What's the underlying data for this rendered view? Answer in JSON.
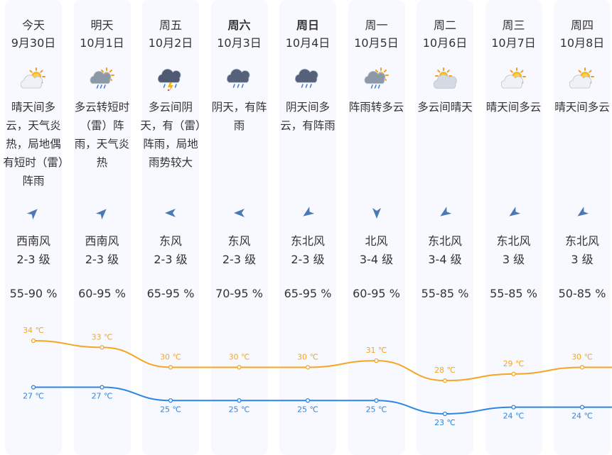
{
  "days": [
    {
      "day": "今天",
      "date": "9月30日",
      "bold": false,
      "icon": "sun-cloud-icon",
      "desc": "晴天间多云，天气炎热，局地偶有短时（雷）阵雨",
      "wind_dir": "西南风",
      "wind_level": "2-3 级",
      "humidity": "55-90 %",
      "wind_arrow": "southwest-arrow-icon",
      "high": 34,
      "low": 27,
      "high_label": "34 ℃",
      "low_label": "27 ℃"
    },
    {
      "day": "明天",
      "date": "10月1日",
      "bold": false,
      "icon": "cloud-rain-sun-icon",
      "desc": "多云转短时（雷）阵雨，天气炎热",
      "wind_dir": "西南风",
      "wind_level": "2-3 级",
      "humidity": "60-95 %",
      "wind_arrow": "southwest-arrow-icon",
      "high": 33,
      "low": 27,
      "high_label": "33 ℃",
      "low_label": "27 ℃"
    },
    {
      "day": "周五",
      "date": "10月2日",
      "bold": false,
      "icon": "thunderstorm-icon",
      "desc": "多云间阴天，有（雷）阵雨，局地雨势较大",
      "wind_dir": "东风",
      "wind_level": "2-3 级",
      "humidity": "65-95 %",
      "wind_arrow": "east-arrow-icon",
      "high": 30,
      "low": 25,
      "high_label": "30 ℃",
      "low_label": "25 ℃"
    },
    {
      "day": "周六",
      "date": "10月3日",
      "bold": true,
      "icon": "rain-cloud-icon",
      "desc": "阴天，有阵雨",
      "wind_dir": "东风",
      "wind_level": "2-3 级",
      "humidity": "70-95 %",
      "wind_arrow": "east-arrow-icon",
      "high": 30,
      "low": 25,
      "high_label": "30 ℃",
      "low_label": "25 ℃"
    },
    {
      "day": "周日",
      "date": "10月4日",
      "bold": true,
      "icon": "rain-cloud-icon",
      "desc": "阴天间多云，有阵雨",
      "wind_dir": "东北风",
      "wind_level": "2-3 级",
      "humidity": "65-95 %",
      "wind_arrow": "northeast-arrow-icon",
      "high": 30,
      "low": 25,
      "high_label": "30 ℃",
      "low_label": "25 ℃"
    },
    {
      "day": "周一",
      "date": "10月5日",
      "bold": false,
      "icon": "cloud-rain-sun-icon",
      "desc": "阵雨转多云",
      "wind_dir": "北风",
      "wind_level": "3-4 级",
      "humidity": "60-95 %",
      "wind_arrow": "north-arrow-icon",
      "high": 31,
      "low": 25,
      "high_label": "31 ℃",
      "low_label": "25 ℃"
    },
    {
      "day": "周二",
      "date": "10月6日",
      "bold": false,
      "icon": "sun-behind-cloud-icon",
      "desc": "多云间晴天",
      "wind_dir": "东北风",
      "wind_level": "3-4 级",
      "humidity": "55-85 %",
      "wind_arrow": "northeast-arrow-icon",
      "high": 28,
      "low": 23,
      "high_label": "28 ℃",
      "low_label": "23 ℃"
    },
    {
      "day": "周三",
      "date": "10月7日",
      "bold": false,
      "icon": "sun-cloud-icon",
      "desc": "晴天间多云",
      "wind_dir": "东北风",
      "wind_level": "3 级",
      "humidity": "55-85 %",
      "wind_arrow": "northeast-arrow-icon",
      "high": 29,
      "low": 24,
      "high_label": "29 ℃",
      "low_label": "24 ℃"
    },
    {
      "day": "周四",
      "date": "10月8日",
      "bold": false,
      "icon": "sun-cloud-icon",
      "desc": "晴天间多云",
      "wind_dir": "东北风",
      "wind_level": "3 级",
      "humidity": "50-85 %",
      "wind_arrow": "northeast-arrow-icon",
      "high": 30,
      "low": 24,
      "high_label": "30 ℃",
      "low_label": "24 ℃"
    }
  ],
  "colors": {
    "high_line": "#f5a623",
    "low_line": "#2f86e0",
    "column_bg": "#f7f9fe",
    "arrow": "#4a79b8"
  }
}
